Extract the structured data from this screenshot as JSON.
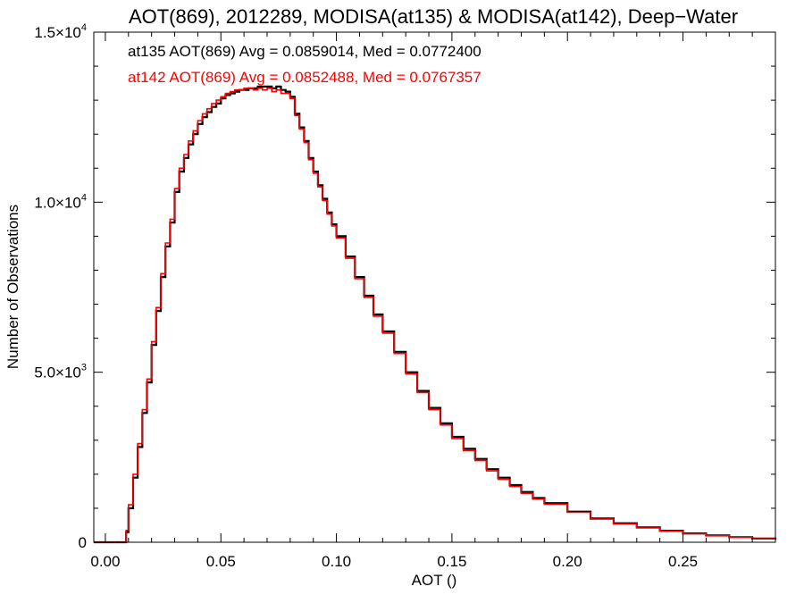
{
  "chart_data": {
    "type": "line",
    "title": "AOT(869), 2012289, MODISA(at135) & MODISA(at142), Deep−Water",
    "xlabel": "AOT ()",
    "ylabel": "Number of Observations",
    "xlim": [
      -0.005,
      0.29
    ],
    "ylim": [
      0,
      15000
    ],
    "grid": false,
    "x_ticks": [
      0.0,
      0.05,
      0.1,
      0.15,
      0.2,
      0.25
    ],
    "x_tick_labels": [
      "0.00",
      "0.05",
      "0.10",
      "0.15",
      "0.20",
      "0.25"
    ],
    "y_ticks": [
      0,
      5000,
      10000,
      15000
    ],
    "y_tick_labels": [
      {
        "mantissa": "0",
        "exponent": ""
      },
      {
        "mantissa": "5.0×10",
        "exponent": "3"
      },
      {
        "mantissa": "1.0×10",
        "exponent": "4"
      },
      {
        "mantissa": "1.5×10",
        "exponent": "4"
      }
    ],
    "annotations": [
      {
        "text": "at135 AOT(869) Avg = 0.0859014, Med = 0.0772400",
        "color": "#000000"
      },
      {
        "text": "at142 AOT(869) Avg = 0.0852488, Med = 0.0767357",
        "color": "#ff0000"
      }
    ],
    "series": [
      {
        "color": "#000000",
        "style": "step",
        "x": [
          -0.005,
          0.0,
          0.005,
          0.008,
          0.009,
          0.01,
          0.012,
          0.014,
          0.016,
          0.018,
          0.02,
          0.022,
          0.024,
          0.026,
          0.028,
          0.03,
          0.032,
          0.034,
          0.036,
          0.038,
          0.04,
          0.042,
          0.044,
          0.046,
          0.048,
          0.05,
          0.052,
          0.054,
          0.056,
          0.058,
          0.06,
          0.062,
          0.064,
          0.066,
          0.068,
          0.07,
          0.072,
          0.074,
          0.076,
          0.078,
          0.08,
          0.082,
          0.084,
          0.086,
          0.088,
          0.09,
          0.092,
          0.094,
          0.096,
          0.098,
          0.1,
          0.104,
          0.108,
          0.112,
          0.116,
          0.12,
          0.125,
          0.13,
          0.135,
          0.14,
          0.145,
          0.15,
          0.155,
          0.16,
          0.165,
          0.17,
          0.175,
          0.18,
          0.185,
          0.19,
          0.2,
          0.21,
          0.22,
          0.23,
          0.24,
          0.25,
          0.26,
          0.27,
          0.28,
          0.29
        ],
        "y": [
          0,
          0,
          0,
          0,
          300,
          1000,
          1900,
          2800,
          3800,
          4700,
          5800,
          6800,
          7800,
          8700,
          9400,
          10300,
          10900,
          11300,
          11700,
          12000,
          12300,
          12500,
          12650,
          12800,
          12900,
          13050,
          13150,
          13200,
          13250,
          13300,
          13300,
          13350,
          13350,
          13400,
          13400,
          13400,
          13350,
          13400,
          13300,
          13250,
          13100,
          12600,
          12200,
          11800,
          11300,
          10900,
          10500,
          10100,
          9700,
          9350,
          9000,
          8400,
          7800,
          7250,
          6700,
          6200,
          5600,
          5000,
          4450,
          3950,
          3500,
          3100,
          2750,
          2450,
          2150,
          1900,
          1680,
          1480,
          1300,
          1150,
          900,
          700,
          560,
          440,
          340,
          260,
          200,
          150,
          110,
          80
        ]
      },
      {
        "color": "#ff0000",
        "style": "step",
        "x": [
          -0.005,
          0.0,
          0.005,
          0.008,
          0.009,
          0.01,
          0.012,
          0.014,
          0.016,
          0.018,
          0.02,
          0.022,
          0.024,
          0.026,
          0.028,
          0.03,
          0.032,
          0.034,
          0.036,
          0.038,
          0.04,
          0.042,
          0.044,
          0.046,
          0.048,
          0.05,
          0.052,
          0.054,
          0.056,
          0.058,
          0.06,
          0.062,
          0.064,
          0.066,
          0.068,
          0.07,
          0.072,
          0.074,
          0.076,
          0.078,
          0.08,
          0.082,
          0.084,
          0.086,
          0.088,
          0.09,
          0.092,
          0.094,
          0.096,
          0.098,
          0.1,
          0.104,
          0.108,
          0.112,
          0.116,
          0.12,
          0.125,
          0.13,
          0.135,
          0.14,
          0.145,
          0.15,
          0.155,
          0.16,
          0.165,
          0.17,
          0.175,
          0.18,
          0.185,
          0.19,
          0.2,
          0.21,
          0.22,
          0.23,
          0.24,
          0.25,
          0.26,
          0.27,
          0.28,
          0.29
        ],
        "y": [
          0,
          0,
          0,
          0,
          350,
          1100,
          2000,
          2900,
          3900,
          4800,
          5900,
          6900,
          7900,
          8800,
          9500,
          10400,
          11000,
          11400,
          11800,
          12100,
          12400,
          12600,
          12750,
          12900,
          13000,
          13100,
          13200,
          13250,
          13300,
          13300,
          13350,
          13350,
          13300,
          13350,
          13300,
          13350,
          13250,
          13300,
          13200,
          13200,
          13050,
          12550,
          12150,
          11750,
          11250,
          10850,
          10450,
          10050,
          9650,
          9300,
          8950,
          8350,
          7750,
          7200,
          6650,
          6150,
          5550,
          4950,
          4400,
          3900,
          3450,
          3050,
          2700,
          2400,
          2100,
          1850,
          1640,
          1440,
          1270,
          1120,
          880,
          680,
          540,
          420,
          330,
          250,
          190,
          140,
          100,
          70
        ]
      }
    ]
  }
}
